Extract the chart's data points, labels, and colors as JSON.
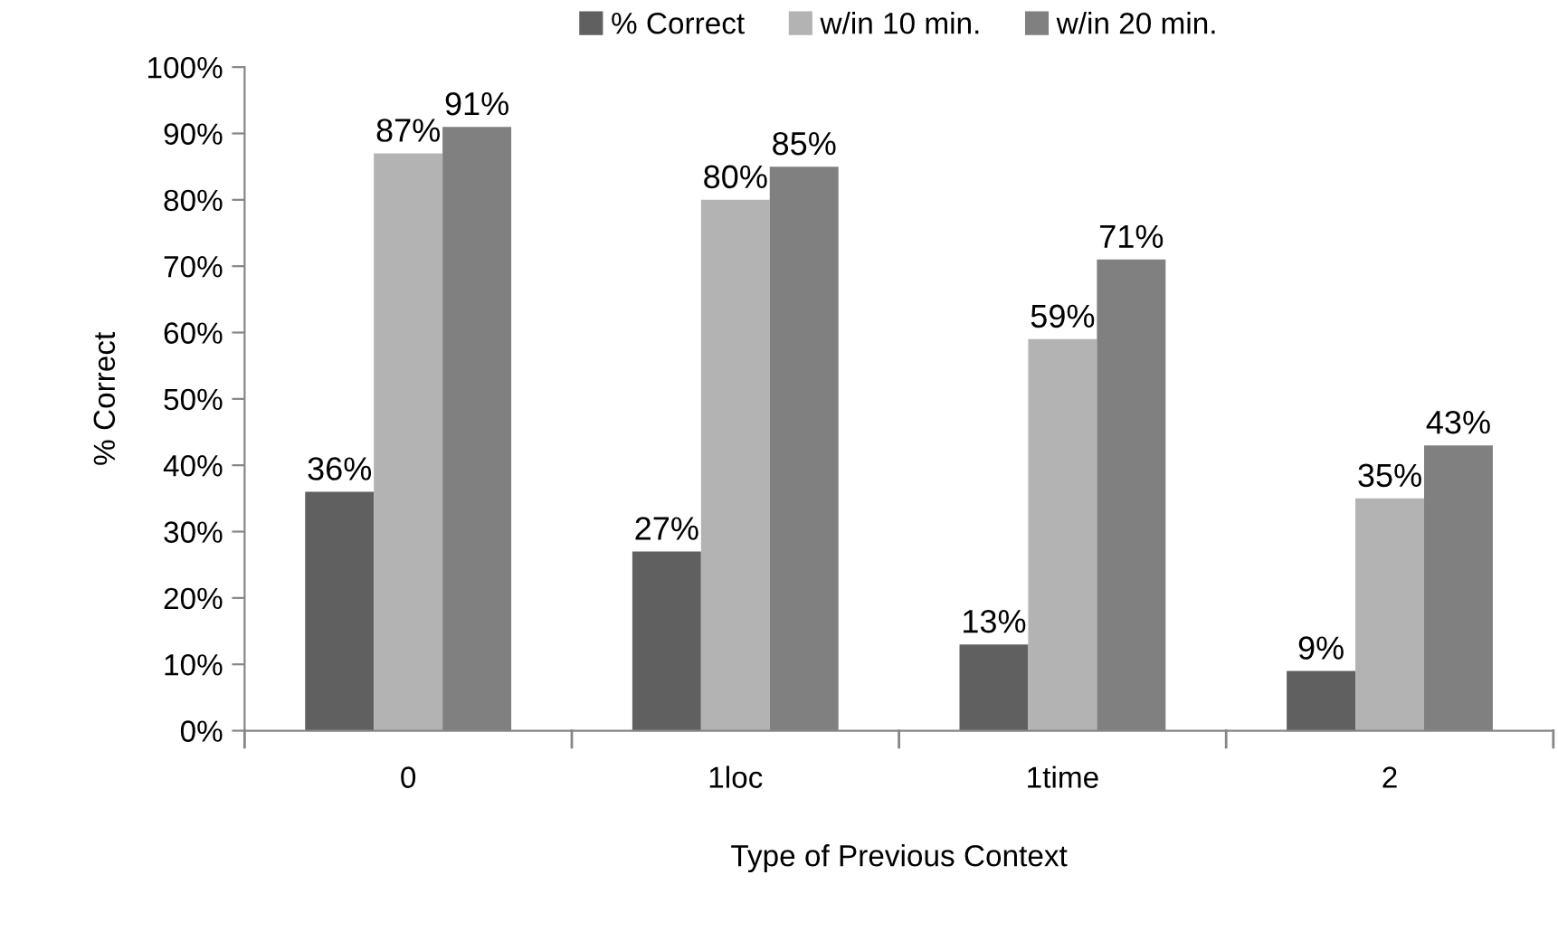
{
  "chart_data": {
    "type": "bar",
    "xlabel": "Type of Previous Context",
    "ylabel": "% Correct",
    "categories": [
      "0",
      "1loc",
      "1time",
      "2"
    ],
    "series": [
      {
        "name": "% Correct",
        "color": "#606060",
        "values": [
          36,
          27,
          13,
          9
        ],
        "value_labels": [
          "36%",
          "27%",
          "13%",
          "9%"
        ]
      },
      {
        "name": "w/in 10 min.",
        "color": "#b3b3b3",
        "values": [
          87,
          80,
          59,
          35
        ],
        "value_labels": [
          "87%",
          "80%",
          "59%",
          "35%"
        ]
      },
      {
        "name": "w/in 20 min.",
        "color": "#808080",
        "values": [
          91,
          85,
          71,
          43
        ],
        "value_labels": [
          "91%",
          "85%",
          "71%",
          "43%"
        ]
      }
    ],
    "ylim": [
      0,
      100
    ],
    "yticks": [
      {
        "value": 0,
        "label": "0%"
      },
      {
        "value": 10,
        "label": "10%"
      },
      {
        "value": 20,
        "label": "20%"
      },
      {
        "value": 30,
        "label": "30%"
      },
      {
        "value": 40,
        "label": "40%"
      },
      {
        "value": 50,
        "label": "50%"
      },
      {
        "value": 60,
        "label": "60%"
      },
      {
        "value": 70,
        "label": "70%"
      },
      {
        "value": 80,
        "label": "80%"
      },
      {
        "value": 90,
        "label": "90%"
      },
      {
        "value": 100,
        "label": "100%"
      }
    ],
    "grid": false,
    "legend": "top"
  }
}
